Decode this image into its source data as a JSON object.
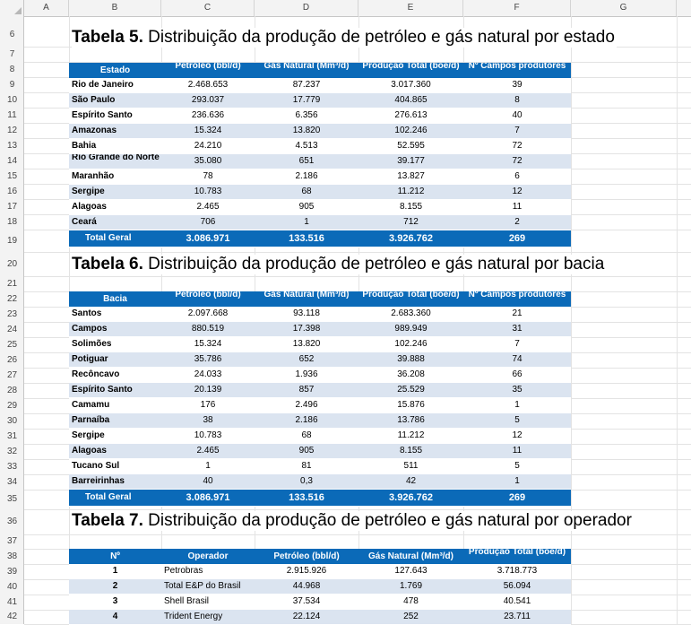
{
  "columns": [
    "A",
    "B",
    "C",
    "D",
    "E",
    "F",
    "G"
  ],
  "rows": [
    "6",
    "7",
    "8",
    "9",
    "10",
    "11",
    "12",
    "13",
    "14",
    "15",
    "16",
    "17",
    "18",
    "19",
    "20",
    "21",
    "22",
    "23",
    "24",
    "25",
    "26",
    "27",
    "28",
    "29",
    "30",
    "31",
    "32",
    "33",
    "34",
    "35",
    "36",
    "37",
    "38",
    "39",
    "40",
    "41",
    "42"
  ],
  "t5": {
    "title_bold": "Tabela 5.",
    "title_rest": " Distribuição da produção de petróleo e gás natural por estado",
    "headers": [
      "Estado",
      "Petróleo (bbl/d)",
      "Gás Natural (Mm³/d)",
      "Produção Total (boe/d)",
      "Nº Campos produtores"
    ],
    "rows": [
      [
        "Rio de Janeiro",
        "2.468.653",
        "87.237",
        "3.017.360",
        "39"
      ],
      [
        "São Paulo",
        "293.037",
        "17.779",
        "404.865",
        "8"
      ],
      [
        "Espírito Santo",
        "236.636",
        "6.356",
        "276.613",
        "40"
      ],
      [
        "Amazonas",
        "15.324",
        "13.820",
        "102.246",
        "7"
      ],
      [
        "Bahia",
        "24.210",
        "4.513",
        "52.595",
        "72"
      ],
      [
        "Rio Grande do Norte",
        "35.080",
        "651",
        "39.177",
        "72"
      ],
      [
        "Maranhão",
        "78",
        "2.186",
        "13.827",
        "6"
      ],
      [
        "Sergipe",
        "10.783",
        "68",
        "11.212",
        "12"
      ],
      [
        "Alagoas",
        "2.465",
        "905",
        "8.155",
        "11"
      ],
      [
        "Ceará",
        "706",
        "1",
        "712",
        "2"
      ]
    ],
    "total": [
      "Total Geral",
      "3.086.971",
      "133.516",
      "3.926.762",
      "269"
    ]
  },
  "t6": {
    "title_bold": "Tabela 6.",
    "title_rest": " Distribuição da produção de petróleo e gás natural por bacia",
    "headers": [
      "Bacia",
      "Petróleo (bbl/d)",
      "Gás Natural (Mm³/d)",
      "Produção Total (boe/d)",
      "Nº Campos produtores"
    ],
    "rows": [
      [
        "Santos",
        "2.097.668",
        "93.118",
        "2.683.360",
        "21"
      ],
      [
        "Campos",
        "880.519",
        "17.398",
        "989.949",
        "31"
      ],
      [
        "Solimões",
        "15.324",
        "13.820",
        "102.246",
        "7"
      ],
      [
        "Potiguar",
        "35.786",
        "652",
        "39.888",
        "74"
      ],
      [
        "Recôncavo",
        "24.033",
        "1.936",
        "36.208",
        "66"
      ],
      [
        "Espírito Santo",
        "20.139",
        "857",
        "25.529",
        "35"
      ],
      [
        "Camamu",
        "176",
        "2.496",
        "15.876",
        "1"
      ],
      [
        "Parnaíba",
        "38",
        "2.186",
        "13.786",
        "5"
      ],
      [
        "Sergipe",
        "10.783",
        "68",
        "11.212",
        "12"
      ],
      [
        "Alagoas",
        "2.465",
        "905",
        "8.155",
        "11"
      ],
      [
        "Tucano Sul",
        "1",
        "81",
        "511",
        "5"
      ],
      [
        "Barreirinhas",
        "40",
        "0,3",
        "42",
        "1"
      ]
    ],
    "total": [
      "Total Geral",
      "3.086.971",
      "133.516",
      "3.926.762",
      "269"
    ]
  },
  "t7": {
    "title_bold": "Tabela 7.",
    "title_rest": " Distribuição da produção de petróleo e gás natural por operador",
    "headers": [
      "Nº",
      "Operador",
      "Petróleo (bbl/d)",
      "Gás Natural (Mm³/d)",
      "Produção Total (boe/d)"
    ],
    "rows": [
      [
        "1",
        "Petrobras",
        "2.915.926",
        "127.643",
        "3.718.773"
      ],
      [
        "2",
        "Total E&P do Brasil",
        "44.968",
        "1.769",
        "56.094"
      ],
      [
        "3",
        "Shell Brasil",
        "37.534",
        "478",
        "40.541"
      ],
      [
        "4",
        "Trident Energy",
        "22.124",
        "252",
        "23.711"
      ]
    ]
  }
}
